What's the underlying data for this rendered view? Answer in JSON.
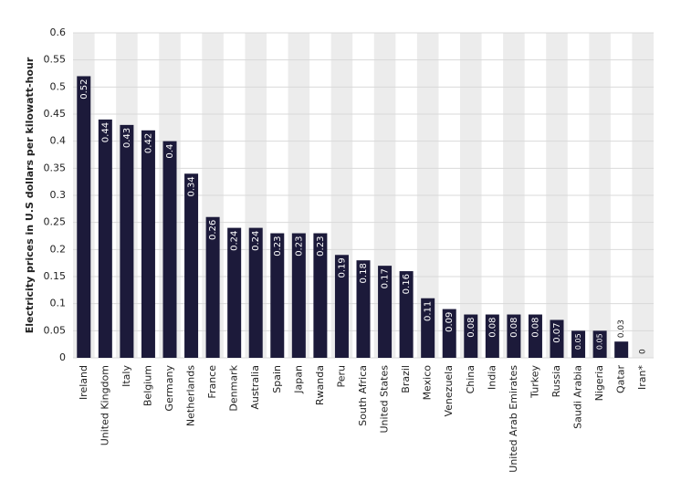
{
  "chart_data": {
    "type": "bar",
    "y_label": "Electricity prices in U.S dollars per kilowatt-hour",
    "categories": [
      "Ireland",
      "United Kingdom",
      "Italy",
      "Belgium",
      "Germany",
      "Netherlands",
      "France",
      "Denmark",
      "Australia",
      "Spain",
      "Japan",
      "Rwanda",
      "Peru",
      "South Africa",
      "United States",
      "Brazil",
      "Mexico",
      "Venezuela",
      "China",
      "India",
      "United Arab Emirates",
      "Turkey",
      "Russia",
      "Saudi Arabia",
      "Nigeria",
      "Qatar",
      "Iran*"
    ],
    "values": [
      0.52,
      0.44,
      0.43,
      0.42,
      0.4,
      0.34,
      0.26,
      0.24,
      0.24,
      0.23,
      0.23,
      0.23,
      0.19,
      0.18,
      0.17,
      0.16,
      0.11,
      0.09,
      0.08,
      0.08,
      0.08,
      0.08,
      0.07,
      0.05,
      0.05,
      0.03,
      0
    ],
    "color": "#1c1a3a",
    "ylim": [
      0,
      0.6
    ],
    "yticks": [
      0,
      0.05,
      0.1,
      0.15,
      0.2,
      0.25,
      0.3,
      0.35,
      0.4,
      0.45,
      0.5,
      0.55,
      0.6
    ],
    "grid": true
  }
}
